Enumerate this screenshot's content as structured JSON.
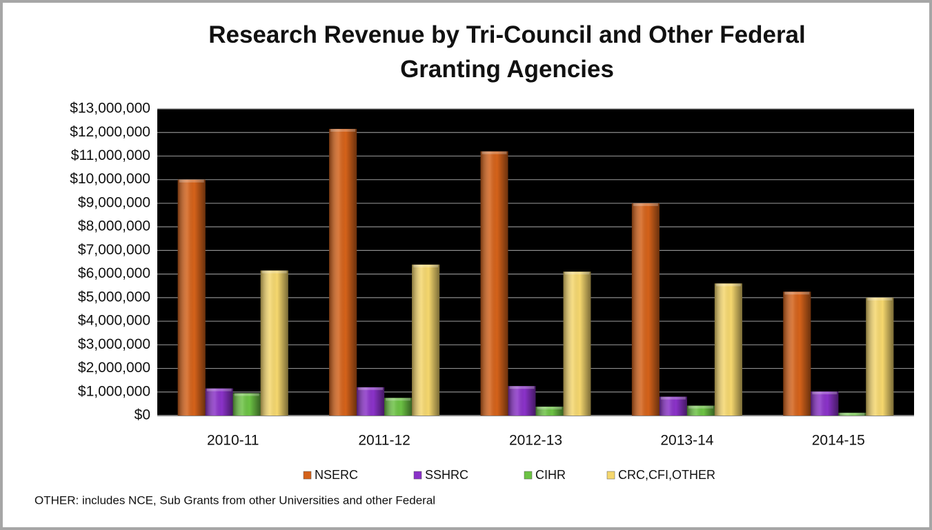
{
  "chart_data": {
    "type": "bar",
    "title": "Research Revenue by Tri-Council and Other Federal Granting Agencies",
    "categories": [
      "2010-11",
      "2011-12",
      "2012-13",
      "2013-14",
      "2014-15"
    ],
    "series": [
      {
        "name": "NSERC",
        "color": "#d4621a",
        "values": [
          10000000,
          12150000,
          11200000,
          9000000,
          5250000
        ]
      },
      {
        "name": "SSHRC",
        "color": "#8a32c8",
        "values": [
          1150000,
          1200000,
          1250000,
          800000,
          1020000
        ]
      },
      {
        "name": "CIHR",
        "color": "#6cc244",
        "values": [
          950000,
          750000,
          380000,
          420000,
          120000
        ]
      },
      {
        "name": "CRC,CFI,OTHER",
        "color": "#f5d76e",
        "values": [
          6150000,
          6400000,
          6100000,
          5600000,
          5000000
        ]
      }
    ],
    "ylim": [
      0,
      13000000
    ],
    "yticks": [
      {
        "value": 0,
        "label": "$0"
      },
      {
        "value": 1000000,
        "label": "$1,000,000"
      },
      {
        "value": 2000000,
        "label": "$2,000,000"
      },
      {
        "value": 3000000,
        "label": "$3,000,000"
      },
      {
        "value": 4000000,
        "label": "$4,000,000"
      },
      {
        "value": 5000000,
        "label": "$5,000,000"
      },
      {
        "value": 6000000,
        "label": "$6,000,000"
      },
      {
        "value": 7000000,
        "label": "$7,000,000"
      },
      {
        "value": 8000000,
        "label": "$8,000,000"
      },
      {
        "value": 9000000,
        "label": "$9,000,000"
      },
      {
        "value": 10000000,
        "label": "$10,000,000"
      },
      {
        "value": 11000000,
        "label": "$11,000,000"
      },
      {
        "value": 12000000,
        "label": "$12,000,000"
      },
      {
        "value": 13000000,
        "label": "$13,000,000"
      }
    ],
    "grid": true,
    "legend": "bottom",
    "note": "OTHER: includes NCE, Sub Grants from other Universities and other Federal"
  }
}
